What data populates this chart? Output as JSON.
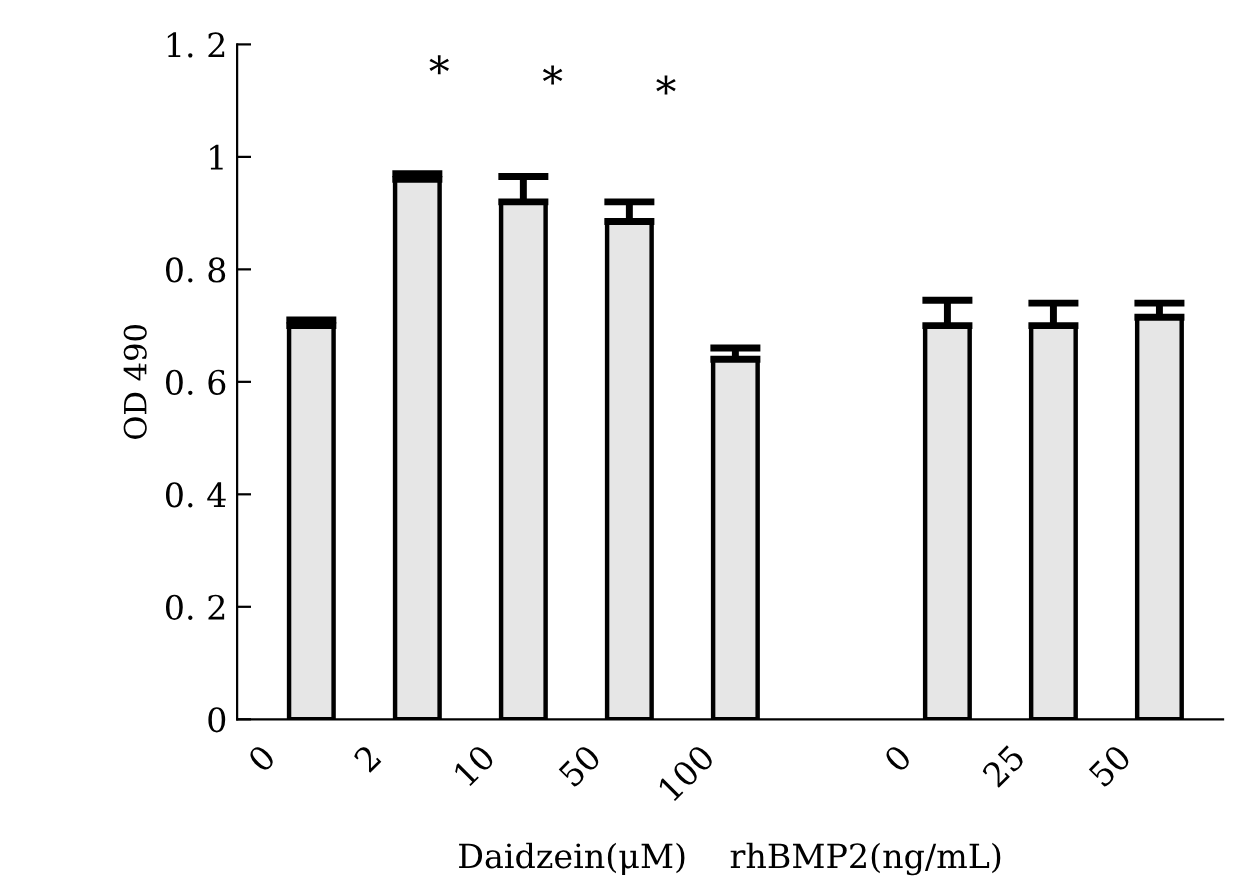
{
  "chart_data": {
    "type": "bar",
    "xlabel": "Daidzein(μM)    rhBMP2(ng/mL)",
    "ylabel": "OD 490",
    "categories": [
      "0",
      "2",
      "10",
      "50",
      "100",
      null,
      "0",
      "25",
      "50"
    ],
    "values": [
      0.7,
      0.96,
      0.92,
      0.885,
      0.64,
      null,
      0.7,
      0.7,
      0.715
    ],
    "errors": [
      0.01,
      0.01,
      0.045,
      0.035,
      0.02,
      null,
      0.045,
      0.04,
      0.025
    ],
    "color": "#e6e6e6",
    "ylim": [
      0,
      1.2
    ],
    "yticks": [
      0,
      {
        "value": 0.2,
        "label": "0. 2"
      },
      {
        "value": 0.4,
        "label": "0. 4"
      },
      {
        "value": 0.6,
        "label": "0. 6"
      },
      {
        "value": 0.8,
        "label": "0. 8"
      },
      1,
      {
        "value": 1.2,
        "label": "1. 2"
      }
    ],
    "annotations": [
      "*",
      "*",
      "*"
    ],
    "grid": false,
    "legend": false
  }
}
